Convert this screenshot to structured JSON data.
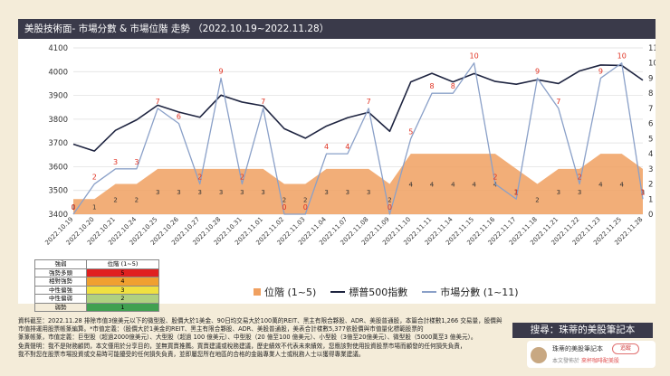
{
  "header": {
    "title": "美股技術面- 市場分數 & 市場位階 走勢 （2022.10.19~2022.11.28）"
  },
  "chart_data": {
    "type": "line",
    "x": [
      "2022.10.19",
      "2022.10.20",
      "2022.10.21",
      "2022.10.24",
      "2022.10.25",
      "2022.10.26",
      "2022.10.27",
      "2022.10.28",
      "2022.10.31",
      "2022.11.01",
      "2022.11.02",
      "2022.11.03",
      "2022.11.04",
      "2022.11.07",
      "2022.11.08",
      "2022.11.09",
      "2022.11.10",
      "2022.11.11",
      "2022.11.14",
      "2022.11.15",
      "2022.11.16",
      "2022.11.17",
      "2022.11.18",
      "2022.11.21",
      "2022.11.22",
      "2022.11.23",
      "2022.11.25",
      "2022.11.28"
    ],
    "y_left_ticks": [
      "3400",
      "3500",
      "3600",
      "3700",
      "3800",
      "3900",
      "4000",
      "4100"
    ],
    "y_right_ticks": [
      "0",
      "1",
      "2",
      "3",
      "4",
      "5",
      "6",
      "7",
      "8",
      "9",
      "10",
      "11"
    ],
    "ylim_left": [
      3400,
      4100
    ],
    "ylim_right": [
      0,
      11
    ],
    "series": [
      {
        "name": "位階 (1~5)",
        "type": "area",
        "color": "#f0a060",
        "axis": "right",
        "values": [
          1,
          1,
          2,
          2,
          3,
          3,
          3,
          3,
          3,
          3,
          2,
          2,
          3,
          3,
          3,
          2,
          4,
          4,
          4,
          4,
          4,
          3,
          2,
          3,
          3,
          4,
          4,
          3
        ]
      },
      {
        "name": "標普500指數",
        "type": "line",
        "color": "#1e2440",
        "axis": "left",
        "values": [
          3695,
          3666,
          3753,
          3797,
          3859,
          3830,
          3808,
          3901,
          3872,
          3856,
          3760,
          3720,
          3771,
          3806,
          3829,
          3749,
          3957,
          3993,
          3957,
          3992,
          3959,
          3947,
          3966,
          3950,
          4003,
          4028,
          4026,
          3964
        ]
      },
      {
        "name": "市場分數 (1~11)",
        "type": "line",
        "color": "#8aa0c8",
        "axis": "right",
        "values": [
          0,
          2,
          3,
          3,
          7,
          6,
          2,
          9,
          2,
          7,
          0,
          0,
          4,
          4,
          7,
          0,
          5,
          8,
          8,
          10,
          2,
          1,
          9,
          7,
          2,
          9,
          10,
          1
        ]
      }
    ],
    "legend_position": "bottom",
    "grid": true
  },
  "legend_table": {
    "headers": [
      "強弱",
      "位階 (1~5)"
    ],
    "rows": [
      {
        "label": "強勢多頭",
        "value": "5",
        "color": "#e02020"
      },
      {
        "label": "相對強勢",
        "value": "4",
        "color": "#f0a030"
      },
      {
        "label": "中性偏強",
        "value": "3",
        "color": "#f0e040"
      },
      {
        "label": "中性偏弱",
        "value": "2",
        "color": "#b0d080"
      },
      {
        "label": "弱勢",
        "value": "1",
        "color": "#40a050"
      }
    ]
  },
  "notes": [
    "資料截至：2022.11.28 排除市值3億美元以下的微型股、股價大於1美金、90日均交易大於100萬的REIT、黑主有限合夥股、ADR、美股普通股，本篇合計樣數1,266 交易量，股價與市值排運用股票帳篆編算。*市值定義：（股價大於1美金的REIT、黑主有限合夥股、ADR、美股普通股，美表合計樣數5,377依股價與市值量化標範股票的",
    "篆篆帳篆，市值定義：巨型股（超過2000億美元）、大型股（超過 100 億美元）、中型股（20 億至100 億美元）、小型股（3億至20億美元）、微型股（5000萬至3 億美元）。",
    "免責聲明：我不是財務顧問，本文僅用於分享目的，並無買賣推薦。買賣建議或稅務建議，歷史績效不代表未來績效，您應該對使用投資股票市場而顧發的任何損失負責，",
    "我不對您在股票市場投資或交易時可能擾受的任何損失負責，並即屬您所在地區的合格的金融專業人士或稅務人士以獲得專業建議。"
  ],
  "search_box": "搜尋：珠蒂的美股筆記本",
  "profile": {
    "name": "珠蒂的美股筆記本",
    "follow": "追蹤",
    "sub_prefix": "本文發佈於",
    "sub_link": "來杯咖啡配美股"
  }
}
